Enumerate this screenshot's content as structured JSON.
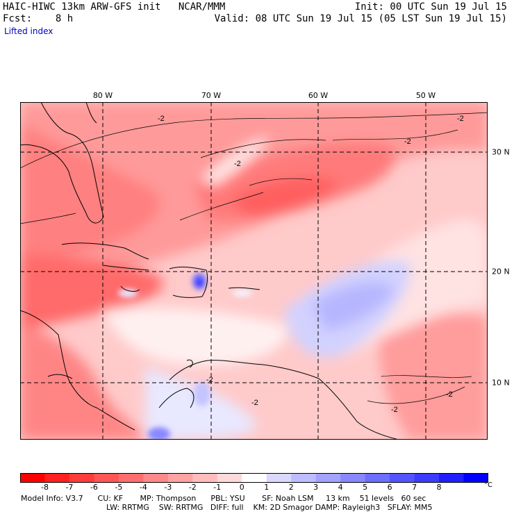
{
  "header": {
    "title": "HAIC-HIWC 13km ARW-GFS init   NCAR/MMM",
    "forecast": "Fcst:    8 h",
    "variable": "Lifted index",
    "init": "Init: 00 UTC Sun 19 Jul 15",
    "valid": "Valid: 08 UTC Sun 19 Jul 15 (05 LST Sun 19 Jul 15)"
  },
  "map": {
    "longitude_labels": [
      "80 W",
      "70 W",
      "60 W",
      "50 W"
    ],
    "latitude_labels": [
      "30 N",
      "20 N",
      "10 N"
    ],
    "contour_labels": [
      "-2",
      "-2",
      "-2",
      "-2",
      "-2",
      "-2",
      "-2",
      "-2"
    ]
  },
  "colorbar": {
    "ticks": [
      "-8",
      "-7",
      "-6",
      "-5",
      "-4",
      "-3",
      "-2",
      "-1",
      "0",
      "1",
      "2",
      "3",
      "4",
      "5",
      "6",
      "7",
      "8"
    ],
    "unit": "°C",
    "colors": [
      "#ff0000",
      "#ff2020",
      "#ff3c3c",
      "#ff5555",
      "#ff6e6e",
      "#ff8888",
      "#ffa2a2",
      "#ffbcbc",
      "#ffd9d9",
      "#ffffff",
      "#d9d9ff",
      "#bcbcff",
      "#a2a2ff",
      "#8888ff",
      "#6e6eff",
      "#5555ff",
      "#3c3cff",
      "#2020ff",
      "#0000ff"
    ]
  },
  "footer": {
    "line1": "Model Info: V3.7      CU: KF       MP: Thompson      PBL: YSU       SF: Noah LSM     13 km    51 levels   60 sec",
    "line2": "LW: RRTMG    SW: RRTMG   DIFF: full    KM: 2D Smagor DAMP: Rayleigh3   SFLAY: MM5"
  }
}
